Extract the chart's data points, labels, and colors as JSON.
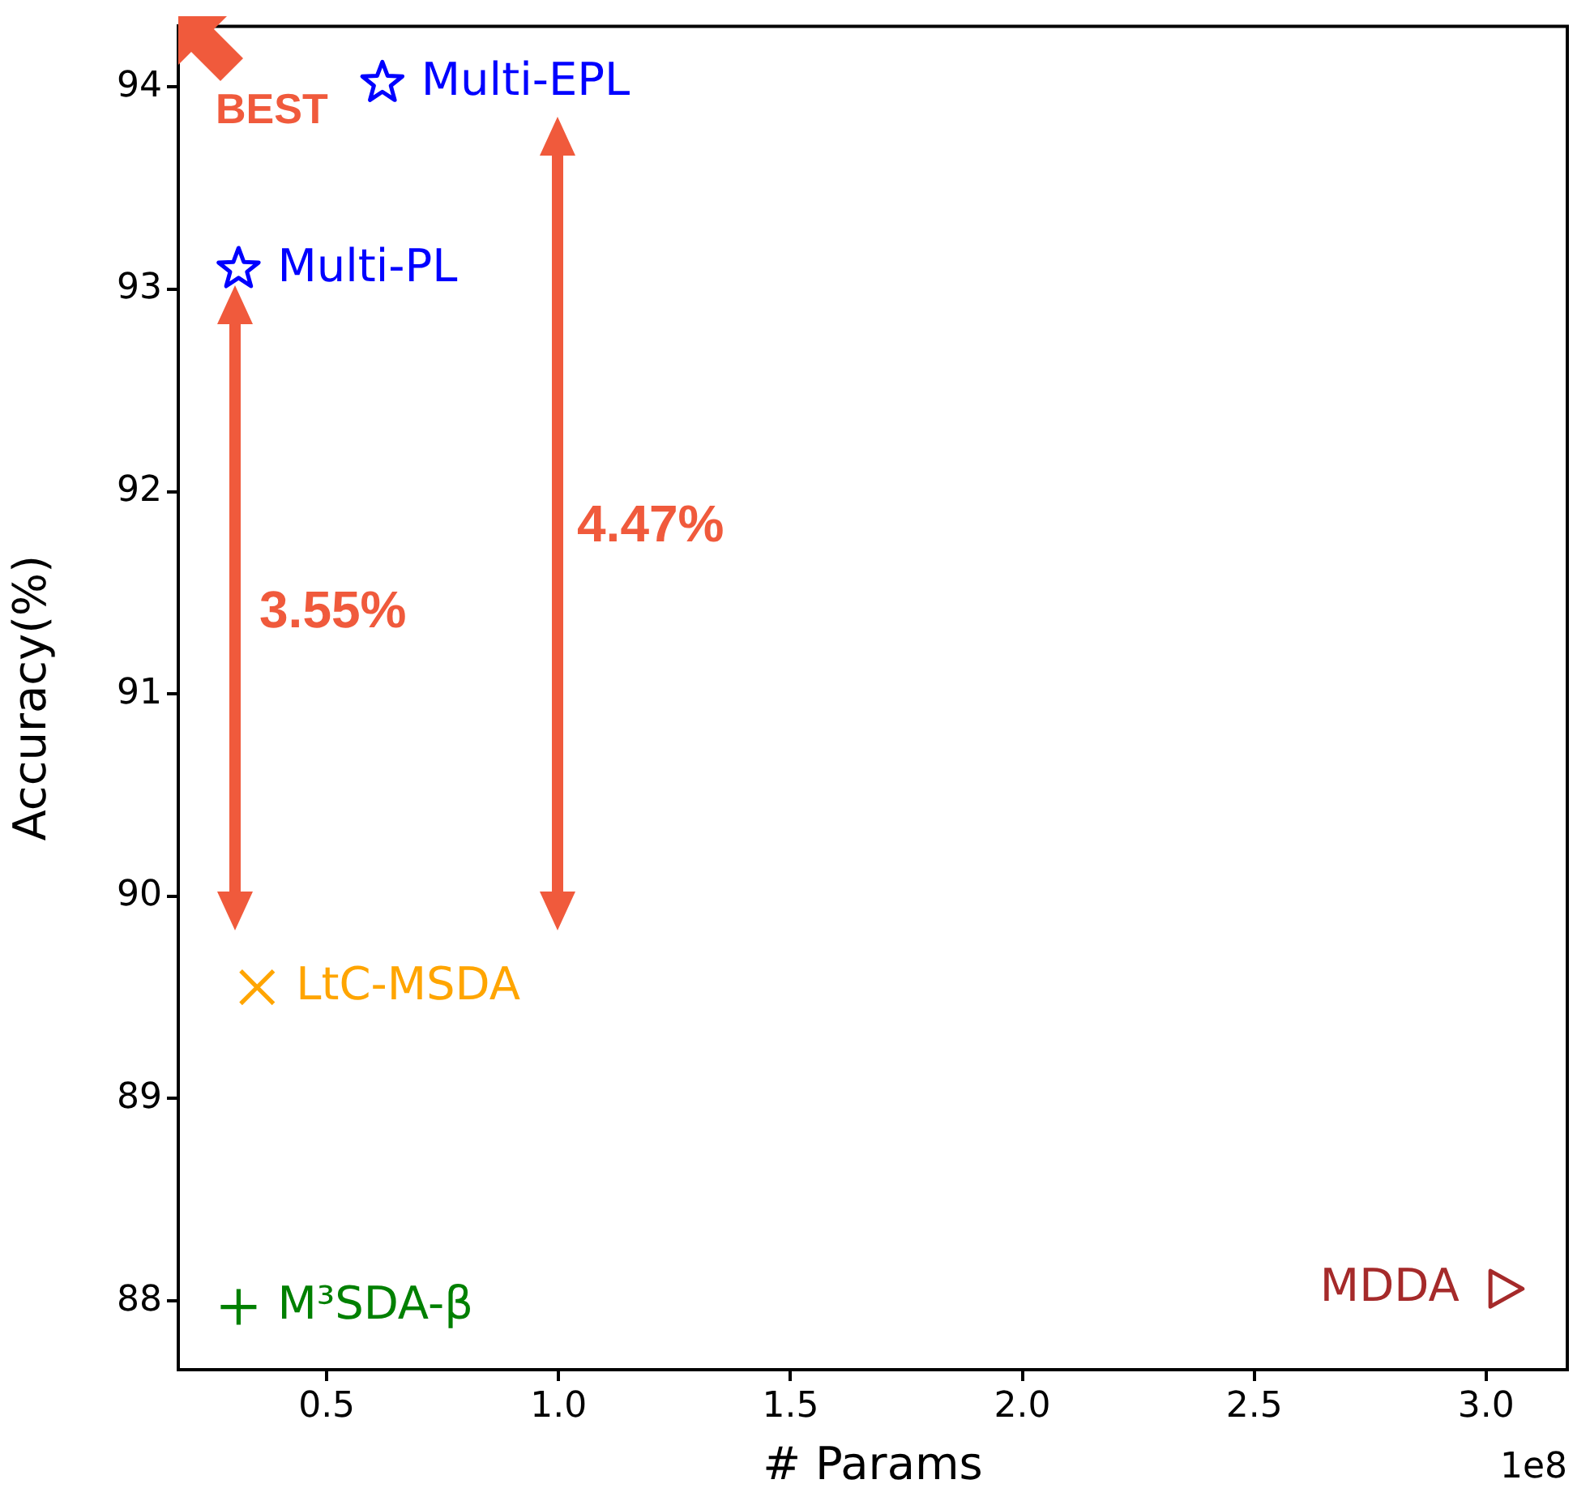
{
  "chart_data": {
    "type": "scatter",
    "xlabel": "# Params",
    "ylabel": "Accuracy(%)",
    "xlim": [
      0.18,
      3.175
    ],
    "ylim": [
      87.66,
      94.3
    ],
    "xticks": [
      {
        "value": 0.5,
        "label": "0.5"
      },
      {
        "value": 1.0,
        "label": "1.0"
      },
      {
        "value": 1.5,
        "label": "1.5"
      },
      {
        "value": 2.0,
        "label": "2.0"
      },
      {
        "value": 2.5,
        "label": "2.5"
      },
      {
        "value": 3.0,
        "label": "3.0"
      }
    ],
    "yticks": [
      88,
      89,
      90,
      91,
      92,
      93,
      94
    ],
    "grid": false,
    "series": [
      {
        "name": "Multi-PL",
        "color": "#0000ff",
        "marker": "star",
        "x": [
          0.31
        ],
        "values": [
          93.1
        ]
      },
      {
        "name": "Multi-EPL",
        "color": "#0000ff",
        "marker": "star",
        "x": [
          0.62
        ],
        "values": [
          94.02
        ]
      },
      {
        "name": "LtC-MSDA",
        "color": "#ffa500",
        "marker": "x",
        "x": [
          0.35
        ],
        "values": [
          89.55
        ]
      },
      {
        "name": "M³SDA-β",
        "color": "#008000",
        "marker": "cross",
        "x": [
          0.31
        ],
        "values": [
          87.97
        ]
      },
      {
        "name": "MDDA",
        "color": "#a52a2a",
        "marker": "triangle",
        "x": [
          3.04
        ],
        "values": [
          88.06
        ]
      }
    ],
    "annotations": [
      "3.55%",
      "4.47%",
      "BEST",
      "1e8"
    ]
  }
}
